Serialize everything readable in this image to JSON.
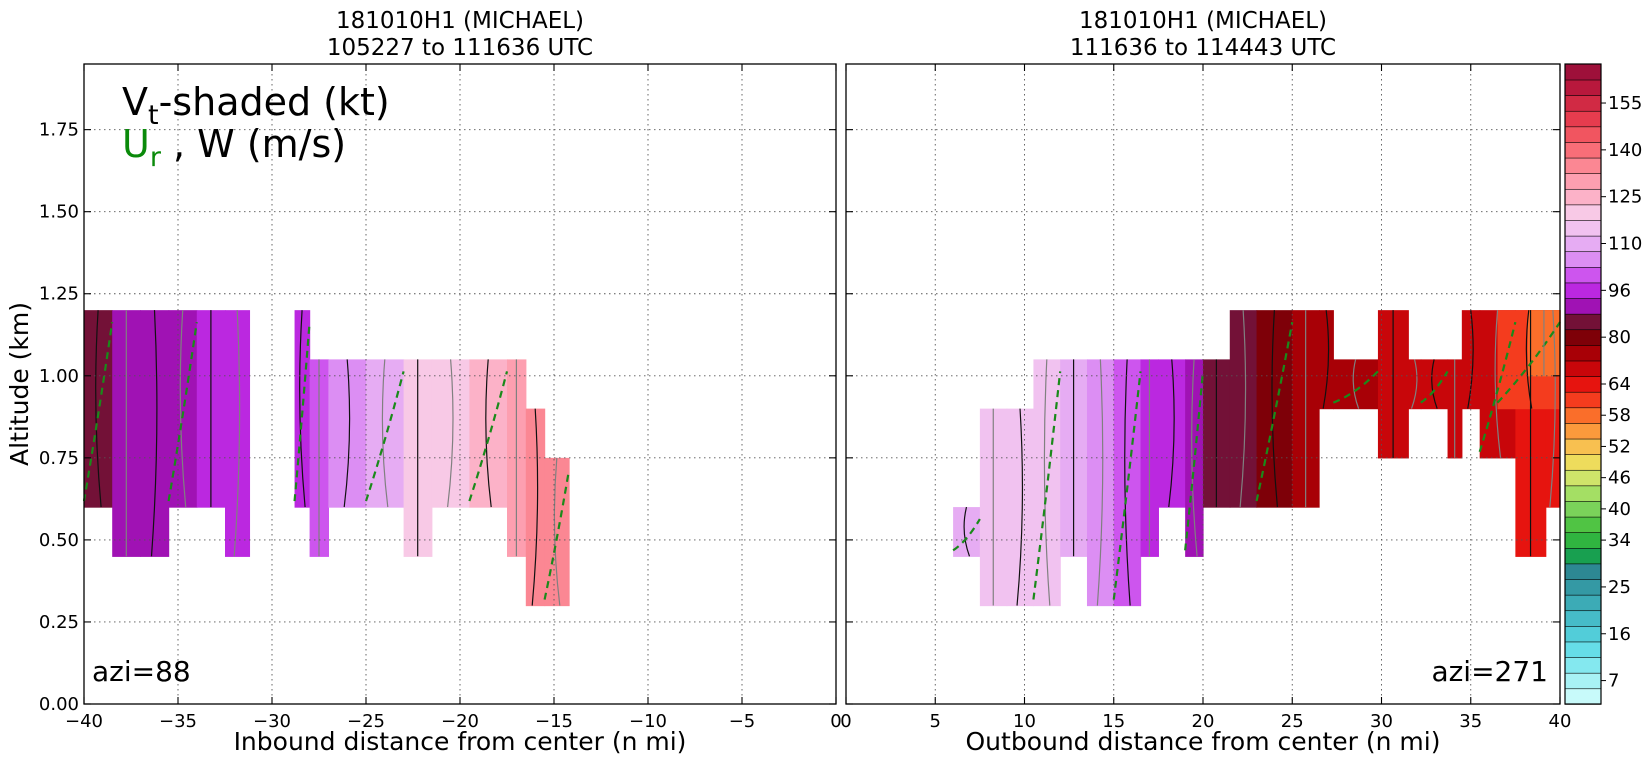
{
  "chart_data": [
    {
      "type": "contour",
      "title": [
        "181010H1 (MICHAEL)",
        "105227 to 111636 UTC"
      ],
      "xlabel": "Inbound distance from center (n mi)",
      "ylabel": "Altitude (km)",
      "xlim": [
        -40,
        0
      ],
      "ylim": [
        0,
        1.95
      ],
      "xticks": [
        "−40",
        "−35",
        "−30",
        "−25",
        "−20",
        "−15",
        "−10",
        "−5",
        "0"
      ],
      "xtick_values": [
        -40,
        -35,
        -30,
        -25,
        -20,
        -15,
        -10,
        -5,
        0
      ],
      "yticks": [
        "0.00",
        "0.25",
        "0.50",
        "0.75",
        "1.00",
        "1.25",
        "1.50",
        "1.75"
      ],
      "ytick_values": [
        0,
        0.25,
        0.5,
        0.75,
        1.0,
        1.25,
        1.5,
        1.75
      ],
      "grid": true,
      "legend_line1": {
        "base": "V",
        "sub": "t",
        "rest": "-shaded (kt)"
      },
      "legend_line2": {
        "base": "U",
        "sub": "r",
        "rest": " , W (m/s)"
      },
      "annotation": "azi=88",
      "shaded_cells": [
        {
          "x0": -40,
          "x1": -38.5,
          "y0": 0.6,
          "y1": 1.2,
          "v": 88
        },
        {
          "x0": -38.5,
          "x1": -37,
          "y0": 0.45,
          "y1": 1.2,
          "v": 90
        },
        {
          "x0": -37,
          "x1": -35.5,
          "y0": 0.45,
          "y1": 1.2,
          "v": 92
        },
        {
          "x0": -35.5,
          "x1": -34,
          "y0": 0.6,
          "y1": 1.2,
          "v": 94
        },
        {
          "x0": -34,
          "x1": -32.5,
          "y0": 0.6,
          "y1": 1.2,
          "v": 96
        },
        {
          "x0": -32.5,
          "x1": -31.2,
          "y0": 0.45,
          "y1": 1.2,
          "v": 98
        },
        {
          "x0": -28.8,
          "x1": -28,
          "y0": 0.6,
          "y1": 1.2,
          "v": 100
        },
        {
          "x0": -28,
          "x1": -27,
          "y0": 0.45,
          "y1": 1.05,
          "v": 104
        },
        {
          "x0": -27,
          "x1": -25,
          "y0": 0.6,
          "y1": 1.05,
          "v": 108
        },
        {
          "x0": -25,
          "x1": -23,
          "y0": 0.6,
          "y1": 1.05,
          "v": 114
        },
        {
          "x0": -23,
          "x1": -21.5,
          "y0": 0.45,
          "y1": 1.05,
          "v": 120
        },
        {
          "x0": -21.5,
          "x1": -19.5,
          "y0": 0.6,
          "y1": 1.05,
          "v": 124
        },
        {
          "x0": -19.5,
          "x1": -17.5,
          "y0": 0.6,
          "y1": 1.05,
          "v": 128
        },
        {
          "x0": -17.5,
          "x1": -16.5,
          "y0": 0.45,
          "y1": 1.05,
          "v": 132
        },
        {
          "x0": -16.5,
          "x1": -15.5,
          "y0": 0.3,
          "y1": 0.9,
          "v": 135
        },
        {
          "x0": -15.5,
          "x1": -14.2,
          "y0": 0.3,
          "y1": 0.75,
          "v": 138
        }
      ]
    },
    {
      "type": "contour",
      "title": [
        "181010H1 (MICHAEL)",
        "111636 to 114443 UTC"
      ],
      "xlabel": "Outbound distance from center (n mi)",
      "xlim": [
        0,
        40
      ],
      "ylim": [
        0,
        1.95
      ],
      "xticks": [
        "0",
        "5",
        "10",
        "15",
        "20",
        "25",
        "30",
        "35",
        "40"
      ],
      "xtick_values": [
        0,
        5,
        10,
        15,
        20,
        25,
        30,
        35,
        40
      ],
      "grid": true,
      "annotation": "azi=271",
      "shaded_cells": [
        {
          "x0": 6,
          "x1": 7.5,
          "y0": 0.45,
          "y1": 0.6,
          "v": 112
        },
        {
          "x0": 7.5,
          "x1": 9,
          "y0": 0.3,
          "y1": 0.9,
          "v": 116
        },
        {
          "x0": 9,
          "x1": 10.5,
          "y0": 0.3,
          "y1": 0.9,
          "v": 118
        },
        {
          "x0": 10.5,
          "x1": 12,
          "y0": 0.3,
          "y1": 1.05,
          "v": 116
        },
        {
          "x0": 12,
          "x1": 13.5,
          "y0": 0.45,
          "y1": 1.05,
          "v": 112
        },
        {
          "x0": 13.5,
          "x1": 15,
          "y0": 0.3,
          "y1": 1.05,
          "v": 108
        },
        {
          "x0": 15,
          "x1": 16.5,
          "y0": 0.3,
          "y1": 1.05,
          "v": 104
        },
        {
          "x0": 16.5,
          "x1": 17.5,
          "y0": 0.45,
          "y1": 1.05,
          "v": 100
        },
        {
          "x0": 17.5,
          "x1": 19,
          "y0": 0.6,
          "y1": 1.05,
          "v": 96
        },
        {
          "x0": 19,
          "x1": 20,
          "y0": 0.45,
          "y1": 1.05,
          "v": 92
        },
        {
          "x0": 20,
          "x1": 21.5,
          "y0": 0.6,
          "y1": 1.05,
          "v": 88
        },
        {
          "x0": 21.5,
          "x1": 23,
          "y0": 0.6,
          "y1": 1.2,
          "v": 85
        },
        {
          "x0": 23,
          "x1": 25,
          "y0": 0.6,
          "y1": 1.2,
          "v": 82
        },
        {
          "x0": 25,
          "x1": 26.5,
          "y0": 0.6,
          "y1": 1.2,
          "v": 79
        },
        {
          "x0": 26.5,
          "x1": 27.3,
          "y0": 0.9,
          "y1": 1.2,
          "v": 76
        },
        {
          "x0": 27.3,
          "x1": 29.8,
          "y0": 0.9,
          "y1": 1.05,
          "v": 75
        },
        {
          "x0": 29.8,
          "x1": 31.5,
          "y0": 0.75,
          "y1": 1.2,
          "v": 73
        },
        {
          "x0": 31.5,
          "x1": 32.2,
          "y0": 0.9,
          "y1": 1.05,
          "v": 73
        },
        {
          "x0": 32.2,
          "x1": 33.7,
          "y0": 0.9,
          "y1": 1.05,
          "v": 72
        },
        {
          "x0": 33.7,
          "x1": 34.5,
          "y0": 0.75,
          "y1": 1.05,
          "v": 71
        },
        {
          "x0": 34.5,
          "x1": 35.5,
          "y0": 0.9,
          "y1": 1.2,
          "v": 70
        },
        {
          "x0": 35.5,
          "x1": 37.5,
          "y0": 0.75,
          "y1": 1.2,
          "v": 69
        },
        {
          "x0": 37.5,
          "x1": 39.2,
          "y0": 0.45,
          "y1": 1.2,
          "v": 67
        },
        {
          "x0": 39.2,
          "x1": 40,
          "y0": 0.6,
          "y1": 1.2,
          "v": 66
        },
        {
          "x0": 36.5,
          "x1": 40,
          "y0": 0.9,
          "y1": 1.2,
          "v": 62
        },
        {
          "x0": 38.2,
          "x1": 40,
          "y0": 1.0,
          "y1": 1.2,
          "v": 58
        }
      ]
    }
  ],
  "colorbar": {
    "ticks": [
      "155",
      "140",
      "125",
      "110",
      "96",
      "80",
      "64",
      "58",
      "52",
      "46",
      "40",
      "34",
      "25",
      "16",
      "7"
    ],
    "tick_levels": [
      155,
      140,
      125,
      110,
      96,
      80,
      64,
      58,
      52,
      46,
      40,
      34,
      25,
      16,
      7
    ],
    "levels": [
      4,
      7,
      10,
      13,
      16,
      19,
      22,
      25,
      28,
      31,
      34,
      37,
      40,
      43,
      46,
      49,
      52,
      55,
      58,
      61,
      64,
      69,
      74,
      80,
      85,
      90,
      96,
      101,
      106,
      110,
      115,
      120,
      125,
      130,
      135,
      140,
      145,
      150,
      155,
      160
    ],
    "colors": [
      "#c8fafa",
      "#a8f2f5",
      "#84e8ef",
      "#66dde8",
      "#52cdd9",
      "#46bcc8",
      "#3cabb6",
      "#3499a4",
      "#2d8893",
      "#18a050",
      "#30b440",
      "#50c444",
      "#7ad25a",
      "#a4df64",
      "#cfe46a",
      "#eedc5c",
      "#f8c050",
      "#fb9a3c",
      "#fa6e2a",
      "#f43c1e",
      "#e6140f",
      "#c8060a",
      "#a80006",
      "#7e0008",
      "#731137",
      "#a012b4",
      "#bb28e0",
      "#cd55ee",
      "#dc8ef3",
      "#e6acf3",
      "#f1c2f0",
      "#f8c9e6",
      "#fcb2c8",
      "#fd9fb0",
      "#fb8793",
      "#f86e78",
      "#f15560",
      "#e63c4e",
      "#d12a44",
      "#b8183c",
      "#9e103a"
    ]
  }
}
